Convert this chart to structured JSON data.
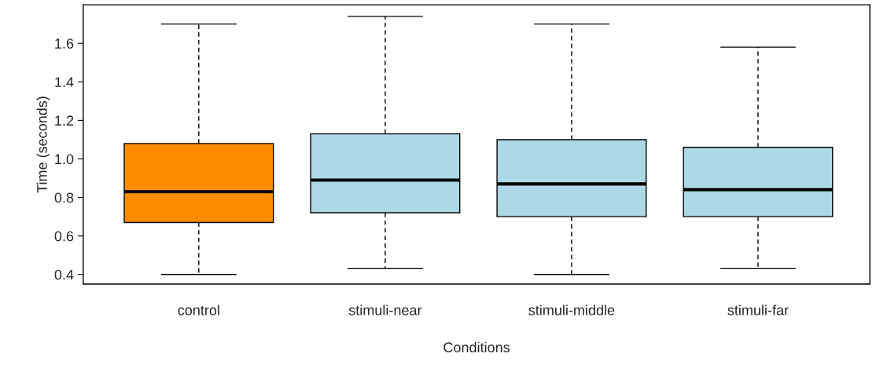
{
  "chart_data": {
    "type": "box",
    "xlabel": "Conditions",
    "ylabel": "Time (seconds)",
    "categories": [
      "control",
      "stimuli-near",
      "stimuli-middle",
      "stimuli-far"
    ],
    "colors": [
      "#ff8c00",
      "#add8e6",
      "#add8e6",
      "#add8e6"
    ],
    "boxes": [
      {
        "low": 0.4,
        "q1": 0.67,
        "median": 0.83,
        "q3": 1.08,
        "high": 1.7
      },
      {
        "low": 0.43,
        "q1": 0.72,
        "median": 0.89,
        "q3": 1.13,
        "high": 1.74
      },
      {
        "low": 0.4,
        "q1": 0.7,
        "median": 0.87,
        "q3": 1.1,
        "high": 1.7
      },
      {
        "low": 0.43,
        "q1": 0.7,
        "median": 0.84,
        "q3": 1.06,
        "high": 1.58
      }
    ],
    "ylim": [
      0.35,
      1.8
    ],
    "yticks": [
      {
        "value": 0.4,
        "label": "0.4"
      },
      {
        "value": 0.6,
        "label": "0.6"
      },
      {
        "value": 0.8,
        "label": "0.8"
      },
      {
        "value": 1.0,
        "label": "1.0"
      },
      {
        "value": 1.2,
        "label": "1.2"
      },
      {
        "value": 1.4,
        "label": "1.4"
      },
      {
        "value": 1.6,
        "label": "1.6"
      }
    ],
    "grid": false
  }
}
